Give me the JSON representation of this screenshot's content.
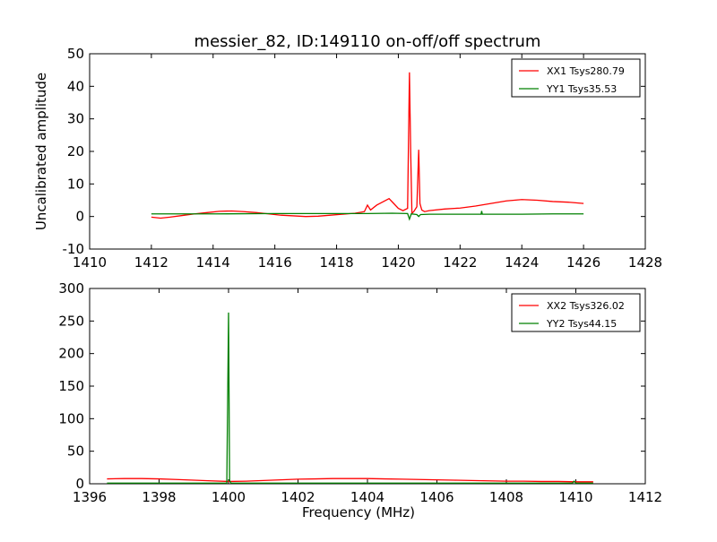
{
  "title": "messier_82, ID:149110 on-off/off spectrum",
  "colors": {
    "red": "#ff0000",
    "green": "#008000"
  },
  "chart_data": [
    {
      "type": "line",
      "ylabel": "Uncalibrated amplitude",
      "xlabel": "",
      "xlim": [
        1410,
        1428
      ],
      "ylim": [
        -10,
        50
      ],
      "xticks": [
        1410,
        1412,
        1414,
        1416,
        1418,
        1420,
        1422,
        1424,
        1426,
        1428
      ],
      "yticks": [
        -10,
        0,
        10,
        20,
        30,
        40,
        50
      ],
      "grid": false,
      "legend_position": "top-right",
      "series": [
        {
          "name": "XX1 Tsys280.79",
          "color": "#ff0000",
          "x": [
            1412.0,
            1412.3,
            1412.6,
            1413.0,
            1413.4,
            1413.8,
            1414.2,
            1414.6,
            1415.0,
            1415.4,
            1415.8,
            1416.2,
            1416.6,
            1417.0,
            1417.4,
            1417.8,
            1418.2,
            1418.6,
            1418.9,
            1419.0,
            1419.1,
            1419.3,
            1419.5,
            1419.7,
            1419.85,
            1420.0,
            1420.15,
            1420.3,
            1420.36,
            1420.4,
            1420.44,
            1420.5,
            1420.6,
            1420.66,
            1420.7,
            1420.76,
            1420.85,
            1421.0,
            1421.5,
            1422.0,
            1422.5,
            1423.0,
            1423.5,
            1424.0,
            1424.5,
            1425.0,
            1425.5,
            1426.0
          ],
          "y": [
            -0.2,
            -0.5,
            -0.2,
            0.3,
            0.8,
            1.2,
            1.6,
            1.7,
            1.5,
            1.2,
            0.8,
            0.4,
            0.2,
            0.0,
            0.1,
            0.4,
            0.7,
            1.0,
            1.5,
            3.5,
            2.0,
            3.5,
            4.5,
            5.5,
            4.0,
            2.5,
            1.8,
            2.5,
            44.3,
            20.0,
            1.0,
            1.5,
            3.0,
            20.5,
            4.0,
            2.0,
            1.5,
            1.8,
            2.3,
            2.6,
            3.2,
            4.0,
            4.8,
            5.2,
            5.0,
            4.6,
            4.4,
            4.0
          ]
        },
        {
          "name": "YY1 Tsys35.53",
          "color": "#008000",
          "x": [
            1412.0,
            1414.0,
            1416.0,
            1417.0,
            1418.0,
            1419.0,
            1419.8,
            1420.3,
            1420.36,
            1420.42,
            1420.6,
            1420.66,
            1420.72,
            1421.0,
            1422.0,
            1422.68,
            1422.7,
            1422.72,
            1423.0,
            1424.0,
            1425.0,
            1426.0
          ],
          "y": [
            0.8,
            0.8,
            0.9,
            0.9,
            0.9,
            0.9,
            1.0,
            0.9,
            -0.8,
            0.8,
            0.6,
            0.0,
            0.6,
            0.7,
            0.7,
            0.7,
            1.7,
            0.7,
            0.7,
            0.7,
            0.8,
            0.8
          ]
        }
      ]
    },
    {
      "type": "line",
      "ylabel": "",
      "xlabel": "Frequency (MHz)",
      "xlim": [
        1396,
        1412
      ],
      "ylim": [
        0,
        300
      ],
      "xticks": [
        1396,
        1398,
        1400,
        1402,
        1404,
        1406,
        1408,
        1410,
        1412
      ],
      "yticks": [
        0,
        50,
        100,
        150,
        200,
        250,
        300
      ],
      "grid": false,
      "legend_position": "top-right",
      "series": [
        {
          "name": "XX2 Tsys326.02",
          "color": "#ff0000",
          "x": [
            1396.5,
            1397.0,
            1397.5,
            1398.0,
            1398.5,
            1399.0,
            1399.5,
            1400.0,
            1400.5,
            1401.0,
            1401.5,
            1402.0,
            1402.5,
            1403.0,
            1403.5,
            1404.0,
            1404.5,
            1405.0,
            1405.5,
            1406.0,
            1406.5,
            1407.0,
            1407.5,
            1408.0,
            1408.5,
            1409.0,
            1409.5,
            1410.0,
            1410.5
          ],
          "y": [
            7.5,
            8.0,
            8.0,
            7.5,
            6.5,
            5.5,
            4.5,
            3.5,
            4.0,
            5.0,
            6.0,
            7.0,
            7.5,
            8.0,
            8.0,
            8.0,
            7.5,
            7.0,
            6.5,
            6.0,
            5.5,
            5.0,
            4.5,
            4.0,
            4.0,
            3.5,
            3.5,
            3.0,
            3.0
          ]
        },
        {
          "name": "YY2 Tsys44.15",
          "color": "#008000",
          "x": [
            1396.5,
            1398.0,
            1399.5,
            1399.95,
            1400.0,
            1400.03,
            1400.07,
            1400.5,
            1402.0,
            1404.0,
            1406.0,
            1408.0,
            1409.9,
            1409.95,
            1410.0,
            1410.5
          ],
          "y": [
            1.0,
            1.0,
            1.0,
            1.0,
            263.0,
            5.0,
            1.0,
            1.0,
            1.0,
            1.0,
            1.0,
            1.0,
            1.0,
            4.0,
            1.0,
            1.0
          ]
        }
      ]
    }
  ]
}
